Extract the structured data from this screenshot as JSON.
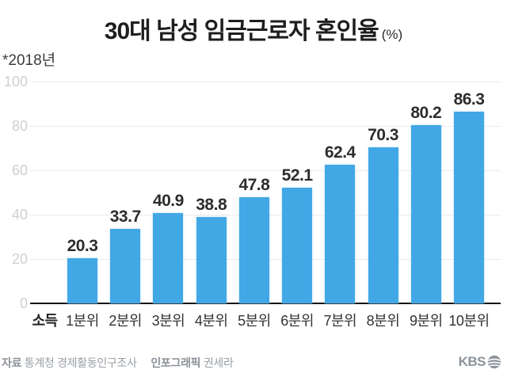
{
  "title": {
    "text": "30대 남성 임금근로자 혼인율",
    "unit": "(%)"
  },
  "note": "*2018년",
  "chart_data": {
    "type": "bar",
    "title": "30대 남성 임금근로자 혼인율",
    "unit": "%",
    "note": "*2018년",
    "x_axis_title": "소득",
    "categories": [
      "1분위",
      "2분위",
      "3분위",
      "4분위",
      "5분위",
      "6분위",
      "7분위",
      "8분위",
      "9분위",
      "10분위"
    ],
    "values": [
      20.3,
      33.7,
      40.9,
      38.8,
      47.8,
      52.1,
      62.4,
      70.3,
      80.2,
      86.3
    ],
    "ylim": [
      0,
      100
    ],
    "yticks": [
      0,
      20,
      40,
      60,
      80,
      100
    ],
    "grid": "horizontal",
    "legend": "none",
    "bar_color": "#42a7e5",
    "value_labels": true
  },
  "footer": {
    "source_label": "자료",
    "source": "통계청 경제활동인구조사",
    "credit_label": "인포그래픽",
    "credit": "권세라",
    "logo_text": "KBS"
  }
}
